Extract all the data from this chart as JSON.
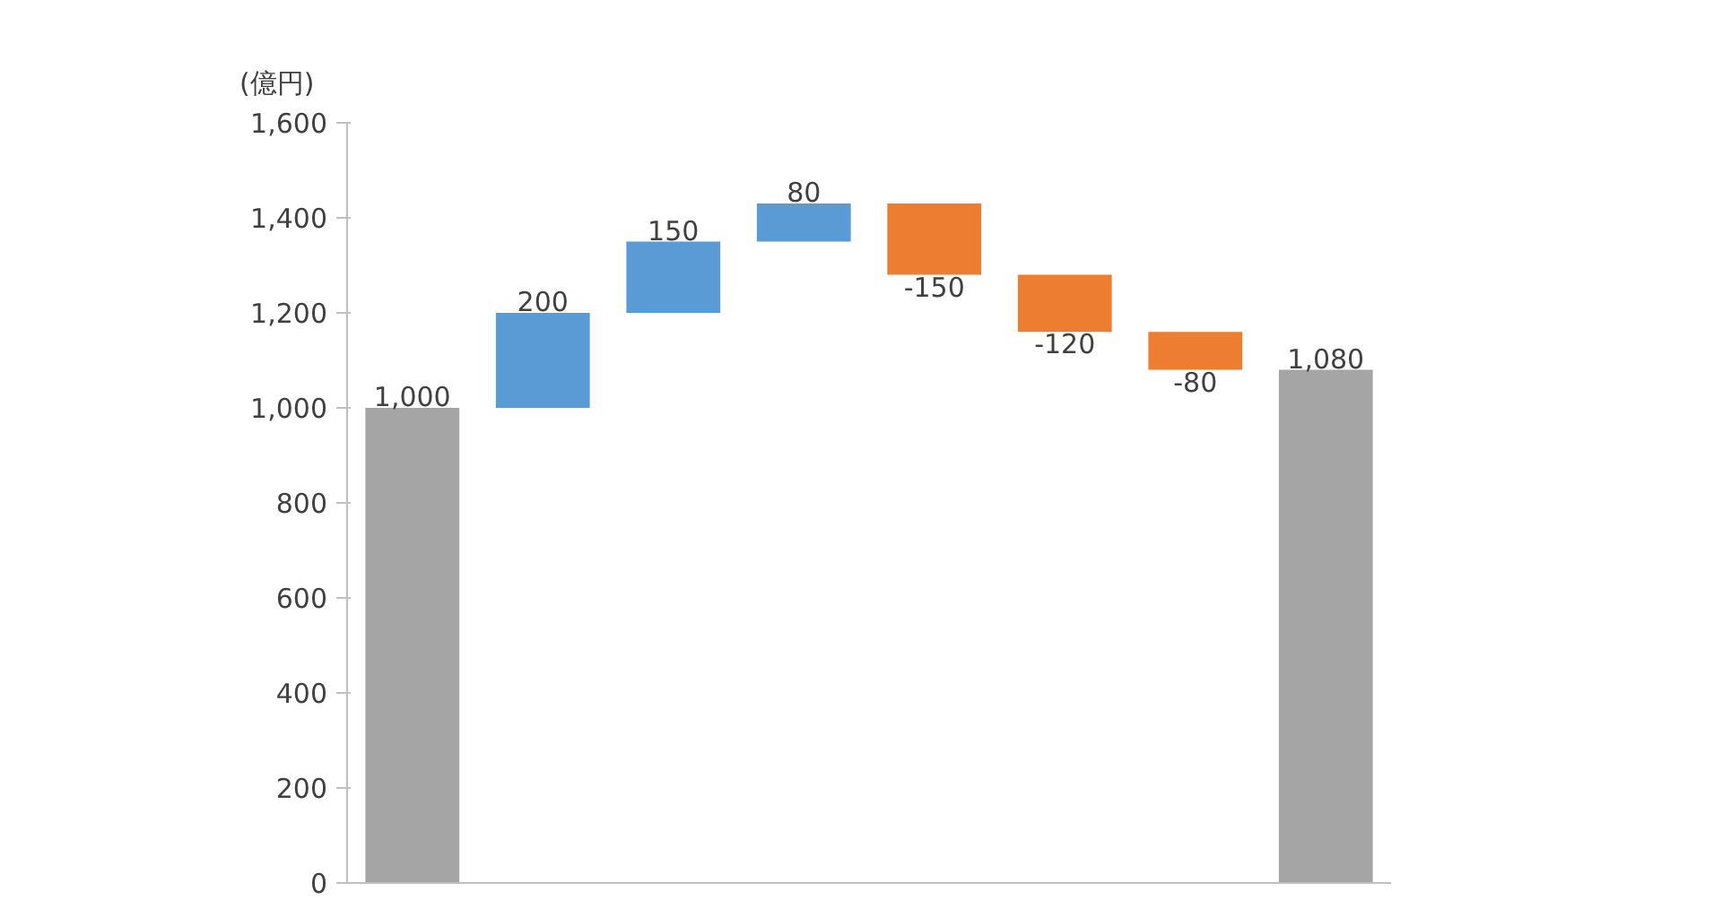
{
  "chart_data": {
    "type": "bar",
    "ylabel": "(億円)",
    "categories": [
      null,
      null,
      null,
      null,
      null,
      null,
      null,
      null
    ],
    "values": [
      1000,
      200,
      150,
      80,
      -150,
      -120,
      -80,
      1080
    ],
    "base": [
      0,
      1000,
      1200,
      1350,
      1430,
      1280,
      1160,
      0
    ],
    "colors": [
      "#a5a5a5",
      "#5b9bd5",
      "#5b9bd5",
      "#5b9bd5",
      "#ed7d31",
      "#ed7d31",
      "#ed7d31",
      "#a5a5a5"
    ],
    "value_labels": [
      "1,000",
      "200",
      "150",
      "80",
      "-150",
      "-120",
      "-80",
      "1,080"
    ],
    "ylim": [
      0,
      1600
    ],
    "yticks": [
      0,
      200,
      400,
      600,
      800,
      {
        "value": 1000,
        "label": "1,000"
      },
      {
        "value": 1200,
        "label": "1,200"
      },
      {
        "value": 1400,
        "label": "1,400"
      },
      {
        "value": 1600,
        "label": "1,600"
      }
    ],
    "tick_labels": "y",
    "grid": false
  }
}
